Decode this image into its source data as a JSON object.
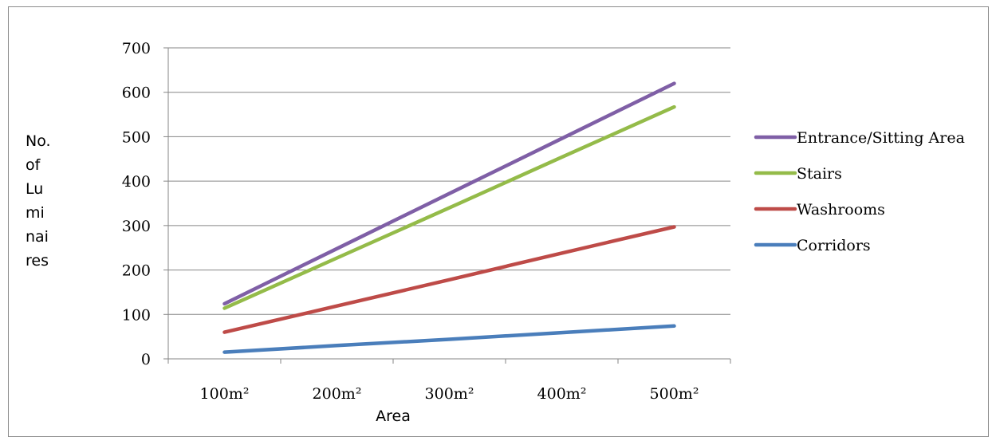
{
  "chart_data": {
    "type": "line",
    "categories": [
      "100m²",
      "200m²",
      "300m²",
      "400m²",
      "500m²"
    ],
    "series": [
      {
        "name": "Entrance/Sitting Area",
        "color": "#7f5fa6",
        "values": [
          124,
          248,
          372,
          496,
          620
        ]
      },
      {
        "name": "Stairs",
        "color": "#94bb49",
        "values": [
          114,
          227,
          340,
          454,
          567
        ]
      },
      {
        "name": "Washrooms",
        "color": "#be4b48",
        "values": [
          60,
          119,
          178,
          238,
          297
        ]
      },
      {
        "name": "Corridors",
        "color": "#4a7ebb",
        "values": [
          15,
          30,
          44,
          59,
          74
        ]
      }
    ],
    "ylabel_lines": [
      "No.",
      "of",
      "Lu",
      "mi",
      "nai",
      "res"
    ],
    "xlabel": "Area",
    "ylim": [
      0,
      700
    ],
    "yticks": [
      0,
      100,
      200,
      300,
      400,
      500,
      600,
      700
    ],
    "grid": true,
    "legend_position": "right"
  }
}
